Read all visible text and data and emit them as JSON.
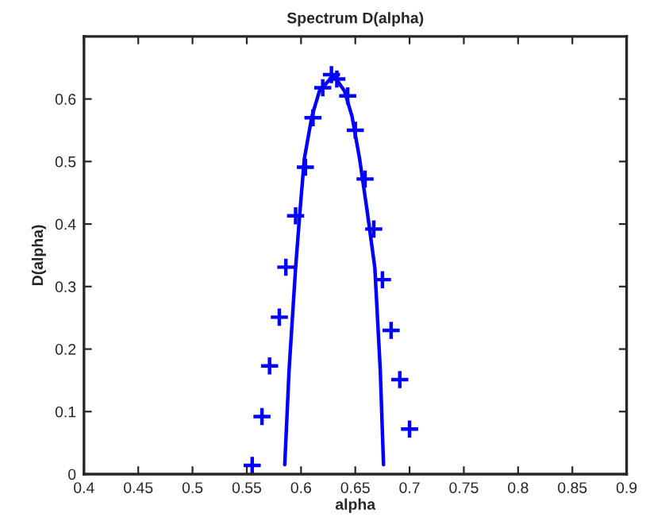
{
  "chart_data": {
    "type": "scatter",
    "title": "Spectrum D(alpha)",
    "xlabel": "alpha",
    "ylabel": "D(alpha)",
    "xlim": [
      0.4,
      0.9
    ],
    "ylim": [
      0,
      0.7
    ],
    "xticks": [
      0.4,
      0.45,
      0.5,
      0.55,
      0.6,
      0.65,
      0.7,
      0.75,
      0.8,
      0.85,
      0.9
    ],
    "yticks": [
      0,
      0.1,
      0.2,
      0.3,
      0.4,
      0.5,
      0.6
    ],
    "grid": false,
    "legend": false,
    "series": [
      {
        "marker": "cross",
        "color": "#0000ff",
        "x": [
          0.555,
          0.564,
          0.571,
          0.58,
          0.586,
          0.595,
          0.604,
          0.611,
          0.62,
          0.628,
          0.633,
          0.643,
          0.65,
          0.659,
          0.667,
          0.675,
          0.683,
          0.691,
          0.7
        ],
        "values": [
          0.014,
          0.092,
          0.173,
          0.251,
          0.331,
          0.413,
          0.491,
          0.57,
          0.618,
          0.639,
          0.632,
          0.605,
          0.55,
          0.472,
          0.392,
          0.311,
          0.23,
          0.151,
          0.072
        ]
      },
      {
        "type": "line",
        "marker": "none",
        "line_style": "solid",
        "color": "#0000ff",
        "x": [
          0.585,
          0.589,
          0.595,
          0.599,
          0.603,
          0.61,
          0.617,
          0.63,
          0.64,
          0.647,
          0.654,
          0.661,
          0.668,
          0.673,
          0.676
        ],
        "values": [
          0.015,
          0.167,
          0.33,
          0.42,
          0.504,
          0.572,
          0.613,
          0.638,
          0.613,
          0.572,
          0.504,
          0.42,
          0.33,
          0.167,
          0.015
        ]
      }
    ]
  }
}
